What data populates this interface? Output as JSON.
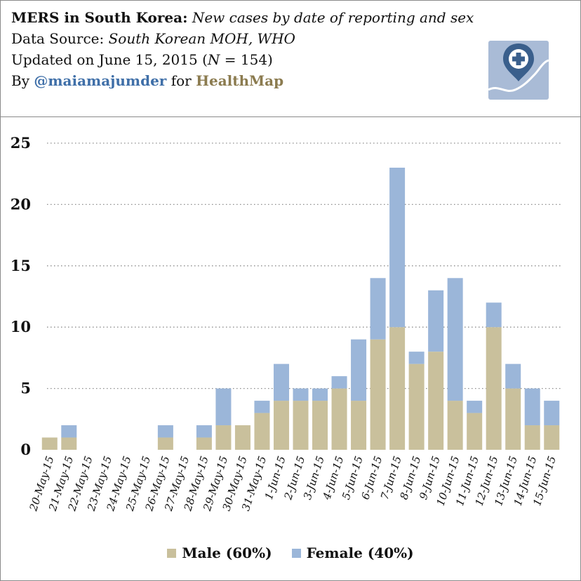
{
  "header": {
    "title_bold": "MERS in South Korea:",
    "title_italic": "New cases by date of reporting and sex",
    "source_label": "Data Source:",
    "source_value": "South Korean MOH, WHO",
    "updated_prefix": "Updated on June 15, 2015 (",
    "updated_n_var": "N",
    "updated_n_eq": " = 154)",
    "by_prefix": "By",
    "handle": "@maiamajumder",
    "for_text": "for",
    "brand": "HealthMap"
  },
  "logo": {
    "icon": "healthmap-map-pin-plus-icon"
  },
  "colors": {
    "male": "#c9c09c",
    "female": "#9bb6d9",
    "handle": "#3f6fa8",
    "brand": "#8b7b4f"
  },
  "legend": {
    "male_label": "Male (60%)",
    "female_label": "Female (40%)"
  },
  "chart_data": {
    "type": "bar",
    "stacked": true,
    "title": "MERS in South Korea: New cases by date of reporting and sex",
    "xlabel": "",
    "ylabel": "",
    "ylim": [
      0,
      25
    ],
    "yticks": [
      0,
      5,
      10,
      15,
      20,
      25
    ],
    "grid": "horizontal-dotted",
    "legend_position": "bottom-center",
    "categories": [
      "20-May-15",
      "21-May-15",
      "22-May-15",
      "23-May-15",
      "24-May-15",
      "25-May-15",
      "26-May-15",
      "27-May-15",
      "28-May-15",
      "29-May-15",
      "30-May-15",
      "31-May-15",
      "1-Jun-15",
      "2-Jun-15",
      "3-Jun-15",
      "4-Jun-15",
      "5-Jun-15",
      "6-Jun-15",
      "7-Jun-15",
      "8-Jun-15",
      "9-Jun-15",
      "10-Jun-15",
      "11-Jun-15",
      "12-Jun-15",
      "13-Jun-15",
      "14-Jun-15",
      "15-Jun-15"
    ],
    "series": [
      {
        "name": "Male (60%)",
        "values": [
          1,
          1,
          0,
          0,
          0,
          0,
          1,
          0,
          1,
          2,
          2,
          3,
          4,
          4,
          4,
          5,
          4,
          9,
          10,
          7,
          8,
          4,
          3,
          10,
          5,
          2,
          2
        ]
      },
      {
        "name": "Female (40%)",
        "values": [
          0,
          1,
          0,
          0,
          0,
          0,
          1,
          0,
          1,
          3,
          0,
          1,
          3,
          1,
          1,
          1,
          5,
          5,
          13,
          1,
          5,
          10,
          1,
          2,
          2,
          3,
          2
        ]
      }
    ]
  }
}
